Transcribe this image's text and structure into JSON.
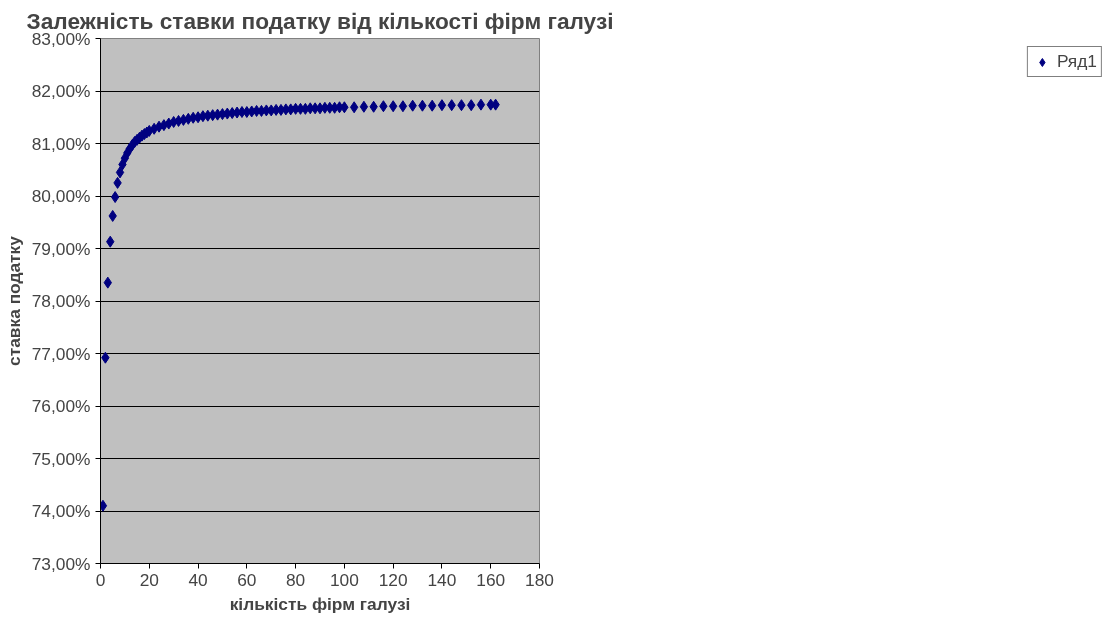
{
  "chart_data": {
    "type": "scatter",
    "title": "Залежність ставки податку від кількості фірм галузі",
    "xlabel": "кількість фірм галузі",
    "ylabel": "ставка податку",
    "x": [
      1,
      2,
      3,
      4,
      5,
      6,
      7,
      8,
      9,
      10,
      11,
      12,
      13,
      14,
      15,
      16,
      17,
      18,
      19,
      20,
      22,
      24,
      26,
      28,
      30,
      32,
      34,
      36,
      38,
      40,
      42,
      44,
      46,
      48,
      50,
      52,
      54,
      56,
      58,
      60,
      62,
      64,
      66,
      68,
      70,
      72,
      74,
      76,
      78,
      80,
      82,
      84,
      86,
      88,
      90,
      92,
      94,
      96,
      98,
      100,
      104,
      108,
      112,
      116,
      120,
      124,
      128,
      132,
      136,
      140,
      144,
      148,
      152,
      156,
      160,
      162
    ],
    "series": [
      {
        "name": "Ряд1",
        "color": "#000080",
        "values": [
          74.1,
          76.92,
          78.35,
          79.13,
          79.62,
          79.98,
          80.25,
          80.45,
          80.6,
          80.72,
          80.82,
          80.9,
          80.97,
          81.03,
          81.07,
          81.11,
          81.15,
          81.18,
          81.21,
          81.24,
          81.28,
          81.32,
          81.35,
          81.38,
          81.41,
          81.43,
          81.45,
          81.47,
          81.49,
          81.5,
          81.52,
          81.53,
          81.54,
          81.55,
          81.56,
          81.57,
          81.58,
          81.59,
          81.6,
          81.6,
          81.61,
          81.62,
          81.62,
          81.63,
          81.63,
          81.64,
          81.64,
          81.65,
          81.65,
          81.66,
          81.66,
          81.66,
          81.67,
          81.67,
          81.67,
          81.68,
          81.68,
          81.68,
          81.69,
          81.69,
          81.69,
          81.7,
          81.7,
          81.71,
          81.71,
          81.71,
          81.72,
          81.72,
          81.72,
          81.73,
          81.73,
          81.73,
          81.73,
          81.74,
          81.74,
          81.74
        ]
      }
    ],
    "xlim": [
      0,
      180
    ],
    "xticks": [
      0,
      20,
      40,
      60,
      80,
      100,
      120,
      140,
      160,
      180
    ],
    "ylim": [
      73,
      83
    ],
    "yticks": [
      {
        "value": 73,
        "label": "73,00%"
      },
      {
        "value": 74,
        "label": "74,00%"
      },
      {
        "value": 75,
        "label": "75,00%"
      },
      {
        "value": 76,
        "label": "76,00%"
      },
      {
        "value": 77,
        "label": "77,00%"
      },
      {
        "value": 78,
        "label": "78,00%"
      },
      {
        "value": 79,
        "label": "79,00%"
      },
      {
        "value": 80,
        "label": "80,00%"
      },
      {
        "value": 81,
        "label": "81,00%"
      },
      {
        "value": 82,
        "label": "82,00%"
      },
      {
        "value": 83,
        "label": "83,00%"
      }
    ],
    "grid": "y",
    "legend": "right",
    "marker": "diamond"
  }
}
